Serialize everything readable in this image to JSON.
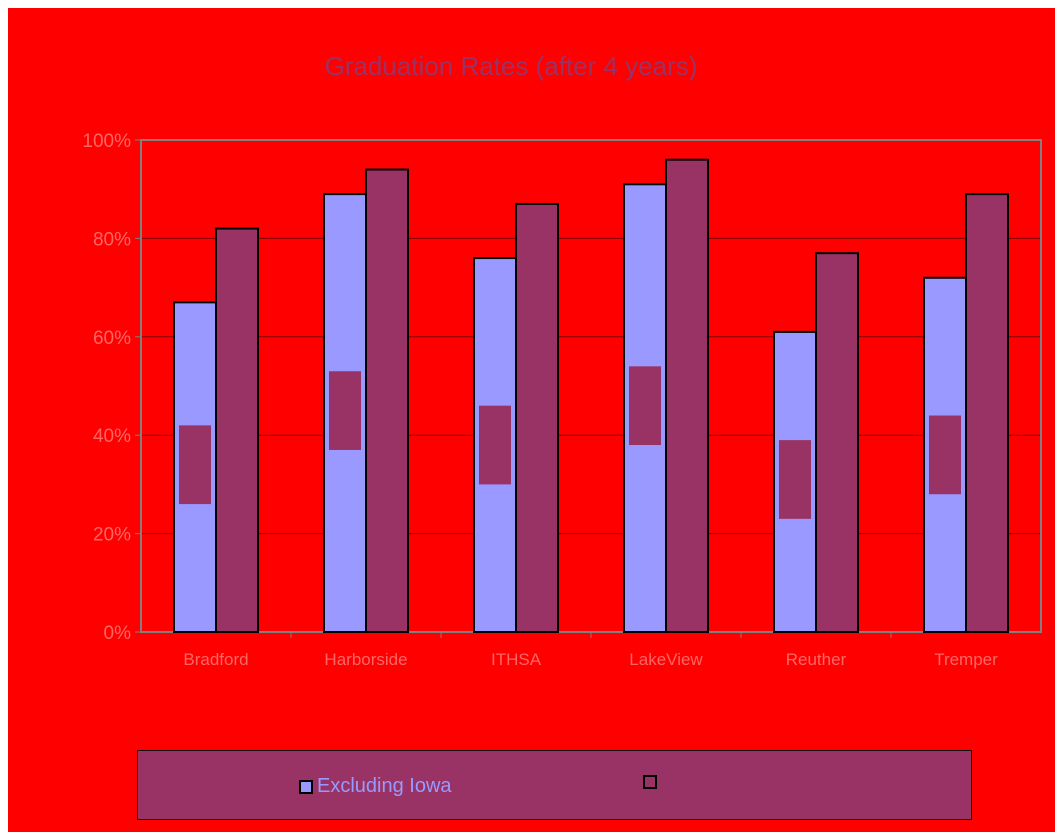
{
  "chart_data": {
    "type": "bar",
    "title": "Graduation Rates (after 4 years)",
    "categories": [
      "Bradford",
      "Harborside",
      "ITHSA",
      "LakeView",
      "Reuther",
      "Tremper"
    ],
    "series": [
      {
        "name": "Excluding Iowa",
        "values": [
          67,
          89,
          76,
          91,
          61,
          72
        ],
        "color": "#9999ff"
      },
      {
        "name": "",
        "values": [
          82,
          94,
          87,
          96,
          77,
          89
        ],
        "color": "#993366"
      }
    ],
    "inner_markers": {
      "low": [
        26,
        37,
        30,
        38,
        23,
        28
      ],
      "high": [
        42,
        53,
        46,
        54,
        39,
        44
      ],
      "color": "#993366"
    },
    "yticks": [
      "0%",
      "20%",
      "40%",
      "60%",
      "80%",
      "100%"
    ],
    "ylim": [
      0,
      100
    ],
    "grid": true,
    "legend_position": "bottom",
    "colors": {
      "background": "#ff0000",
      "title": "#993366",
      "tick": "#ff6666",
      "gridline": "#800000",
      "plot_border": "#808080"
    }
  }
}
